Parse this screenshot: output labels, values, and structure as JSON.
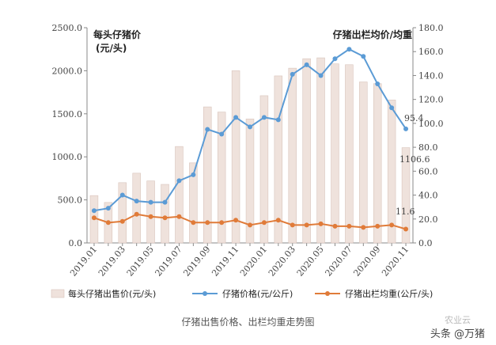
{
  "chart_data": {
    "type": "bar",
    "categories": [
      "2019.01",
      "2019.02",
      "2019.03",
      "2019.04",
      "2019.05",
      "2019.06",
      "2019.07",
      "2019.08",
      "2019.09",
      "2019.10",
      "2019.11",
      "2019.12",
      "2020.01",
      "2020.02",
      "2020.03",
      "2020.04",
      "2020.05",
      "2020.06",
      "2020.07",
      "2020.08",
      "2020.09",
      "2020.10",
      "2020.11"
    ],
    "x_tick_labels": [
      "2019.01",
      "2019.03",
      "2019.05",
      "2019.07",
      "2019.09",
      "2019.11",
      "2020.01",
      "2020.03",
      "2020.05",
      "2020.07",
      "2020.09",
      "2020.11"
    ],
    "left_title_line1": "每头仔猪价",
    "left_title_line2": "(元/头)",
    "right_title": "仔猪出栏均价/均重",
    "left_ylim": [
      0,
      2500
    ],
    "left_ticks": [
      "0.0",
      "500.0",
      "1000.0",
      "1500.0",
      "2000.0",
      "2500.0"
    ],
    "right_ylim": [
      0,
      180
    ],
    "right_ticks": [
      "0.0",
      "20.0",
      "40.0",
      "60.0",
      "80.0",
      "100.0",
      "120.0",
      "140.0",
      "160.0",
      "180.0"
    ],
    "series": [
      {
        "name": "每头仔猪出售价(元/头)",
        "type": "bar",
        "axis": "left",
        "color": "#efe2dc",
        "values": [
          550,
          470,
          700,
          810,
          720,
          680,
          1120,
          930,
          1580,
          1520,
          2000,
          1440,
          1710,
          1940,
          2030,
          2140,
          2150,
          2080,
          2070,
          1870,
          1850,
          1660,
          1106.6
        ]
      },
      {
        "name": "仔猪价格(元/公斤)",
        "type": "line",
        "axis": "right",
        "color": "#5b9bd5",
        "values": [
          27,
          29,
          40,
          35,
          34,
          34,
          52,
          57,
          95,
          91,
          105,
          97,
          105,
          103,
          141,
          149,
          140,
          154,
          162,
          156,
          133,
          113,
          95.4
        ]
      },
      {
        "name": "仔猪出栏均重(公斤/头)",
        "type": "line",
        "axis": "right",
        "color": "#e07b39",
        "values": [
          21,
          17,
          18,
          24,
          22,
          21,
          22,
          17,
          17,
          17,
          19,
          15,
          17,
          19,
          15,
          15,
          16,
          14,
          14,
          13,
          14,
          15,
          11.6
        ]
      }
    ],
    "annotations": [
      "95.4",
      "1106.6",
      "11.6"
    ],
    "grid": false,
    "legend_position": "bottom"
  },
  "caption": "仔猪出售价格、出栏均重走势图",
  "watermark": "头条 @万猪",
  "watermark_faint": "农业云"
}
